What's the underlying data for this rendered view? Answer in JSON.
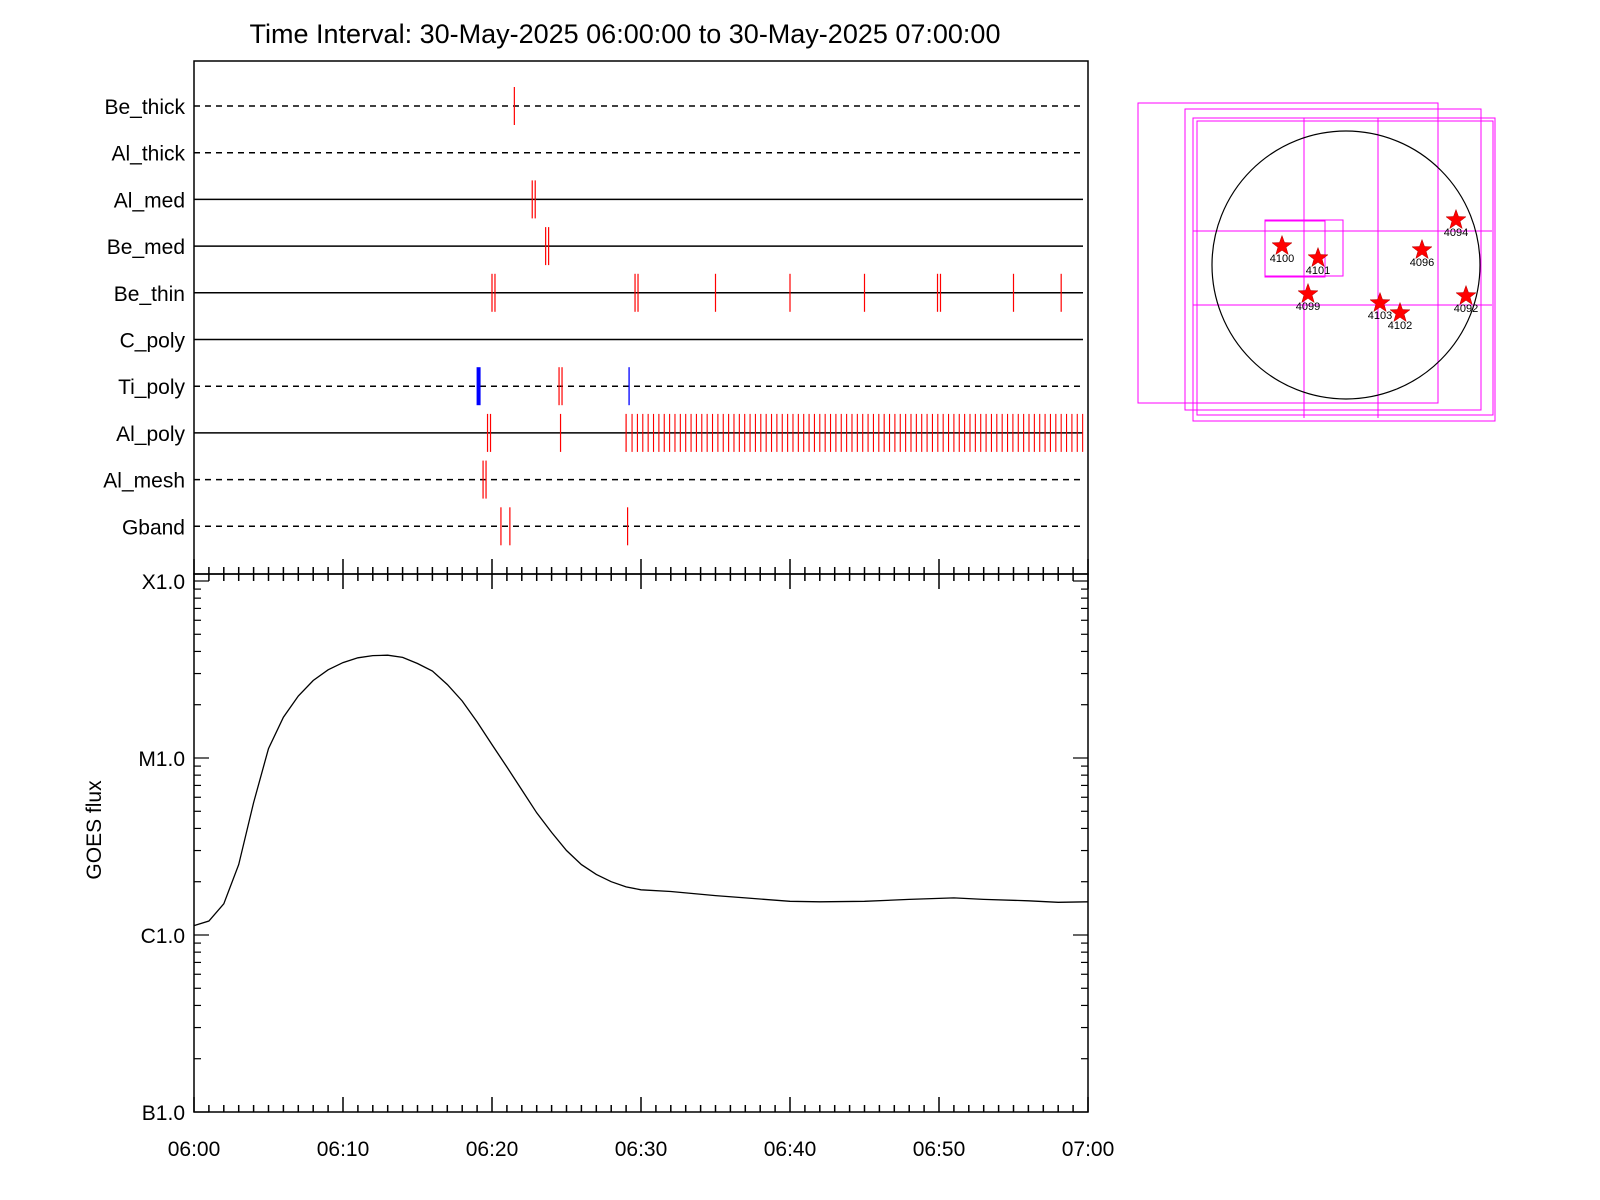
{
  "chart_data": [
    {
      "type": "timeline",
      "title": "Time Interval: 30-May-2025 06:00:00 to 30-May-2025 07:00:00",
      "time_range": [
        "06:00",
        "07:00"
      ],
      "x_ticks": [
        "06:00",
        "06:10",
        "06:20",
        "06:30",
        "06:40",
        "06:50",
        "07:00"
      ],
      "channels": [
        {
          "name": "Be_thick",
          "line": "dashed",
          "red": [
            21.5
          ],
          "blue": []
        },
        {
          "name": "Al_thick",
          "line": "dashed",
          "red": [],
          "blue": []
        },
        {
          "name": "Al_med",
          "line": "solid",
          "red": [
            22.7,
            22.9
          ],
          "blue": []
        },
        {
          "name": "Be_med",
          "line": "solid",
          "red": [
            23.6,
            23.8
          ],
          "blue": []
        },
        {
          "name": "Be_thin",
          "line": "solid",
          "red": [
            20.0,
            20.2,
            29.6,
            29.8,
            35.0,
            40.0,
            45.0,
            49.9,
            50.1,
            55.0,
            58.2
          ],
          "blue": []
        },
        {
          "name": "C_poly",
          "line": "solid",
          "red": [],
          "blue": []
        },
        {
          "name": "Ti_poly",
          "line": "dashed",
          "red": [
            24.5,
            24.7
          ],
          "blue": [
            19.1,
            29.2
          ]
        },
        {
          "name": "Al_poly",
          "line": "solid",
          "red": [
            19.7,
            19.9,
            24.6,
            29.0
          ],
          "dense_red": [
            29.4,
            59.8,
            0.36
          ],
          "blue": []
        },
        {
          "name": "Al_mesh",
          "line": "dashed",
          "red": [
            19.4,
            19.6
          ],
          "blue": []
        },
        {
          "name": "Gband",
          "line": "dashed",
          "red": [
            20.6,
            21.2,
            29.1
          ],
          "blue": []
        }
      ]
    },
    {
      "type": "line",
      "ylabel": "GOES flux",
      "y_scale": "log",
      "y_ticks": [
        "X1.0",
        "M1.0",
        "C1.0",
        "B1.0"
      ],
      "x_ticks": [
        "06:00",
        "06:10",
        "06:20",
        "06:30",
        "06:40",
        "06:50",
        "07:00"
      ],
      "series": [
        {
          "x": [
            0,
            1,
            2,
            3,
            4,
            5,
            6,
            7,
            8,
            9,
            10,
            11,
            12,
            13,
            14,
            15,
            16,
            17,
            18,
            19,
            20,
            21,
            22,
            23,
            24,
            25,
            26,
            27,
            28,
            29,
            30,
            32,
            35,
            37,
            40,
            42,
            45,
            48,
            51,
            53,
            56,
            58,
            60
          ],
          "y": [
            1.13e-06,
            1.2e-06,
            1.5e-06,
            2.5e-06,
            5.6e-06,
            1.13e-05,
            1.7e-05,
            2.24e-05,
            2.74e-05,
            3.15e-05,
            3.46e-05,
            3.68e-05,
            3.79e-05,
            3.81e-05,
            3.7e-05,
            3.42e-05,
            3.1e-05,
            2.6e-05,
            2.1e-05,
            1.6e-05,
            1.19e-05,
            8.9e-06,
            6.6e-06,
            4.9e-06,
            3.8e-06,
            3e-06,
            2.5e-06,
            2.2e-06,
            2e-06,
            1.87e-06,
            1.8e-06,
            1.76e-06,
            1.67e-06,
            1.62e-06,
            1.55e-06,
            1.54e-06,
            1.55e-06,
            1.59e-06,
            1.62e-06,
            1.59e-06,
            1.56e-06,
            1.53e-06,
            1.54e-06
          ]
        }
      ]
    },
    {
      "type": "scatter",
      "title": "",
      "markers": [
        {
          "label": "4100"
        },
        {
          "label": "4101"
        },
        {
          "label": "4099"
        },
        {
          "label": "4096"
        },
        {
          "label": "4094"
        },
        {
          "label": "4103"
        },
        {
          "label": "4102"
        },
        {
          "label": "4092"
        }
      ]
    }
  ],
  "colors": {
    "event_red": "#ff0000",
    "event_blue": "#0000ff",
    "fov_magenta": "#ff00ff",
    "axis": "#000000"
  }
}
